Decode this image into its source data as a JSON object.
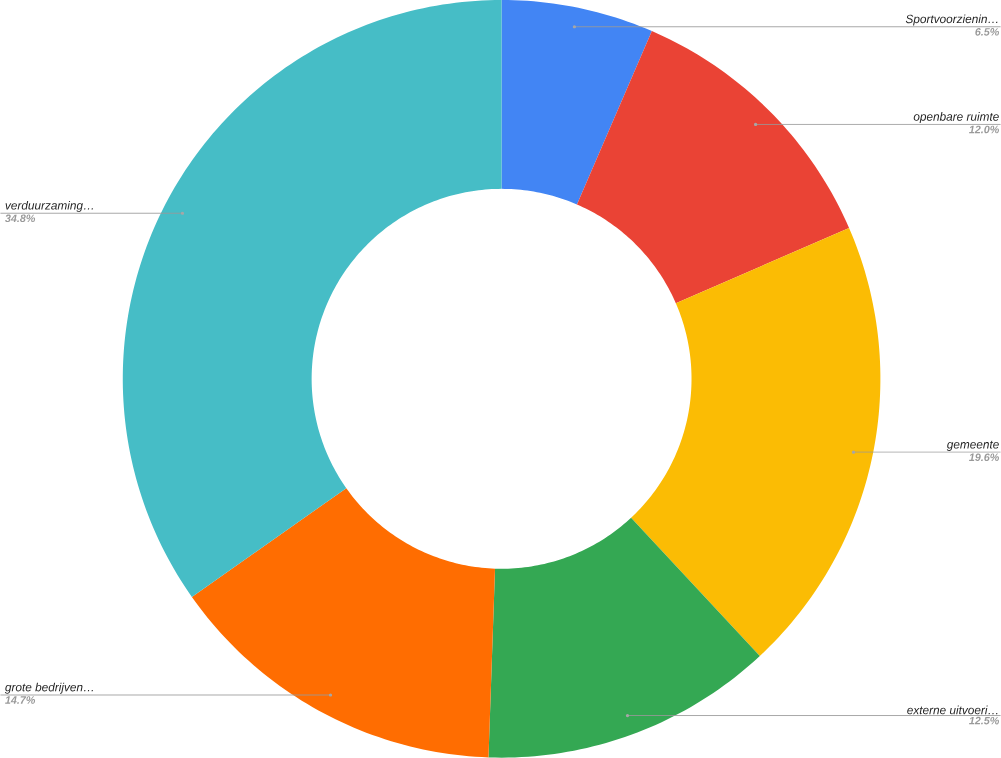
{
  "chart_data": {
    "type": "donut",
    "categories": [
      "Sportvoorzienin…",
      "openbare ruimte",
      "gemeente",
      "externe uitvoeri…",
      "grote bedrijven…",
      "verduurzaming…"
    ],
    "values": [
      6.5,
      12.0,
      19.6,
      12.5,
      14.7,
      34.8
    ],
    "value_labels": [
      "6.5%",
      "12.0%",
      "19.6%",
      "12.5%",
      "14.7%",
      "34.8%"
    ],
    "colors": [
      "#4285f4",
      "#ea4335",
      "#fbbc04",
      "#34a853",
      "#ff6d01",
      "#46bdc6"
    ]
  }
}
